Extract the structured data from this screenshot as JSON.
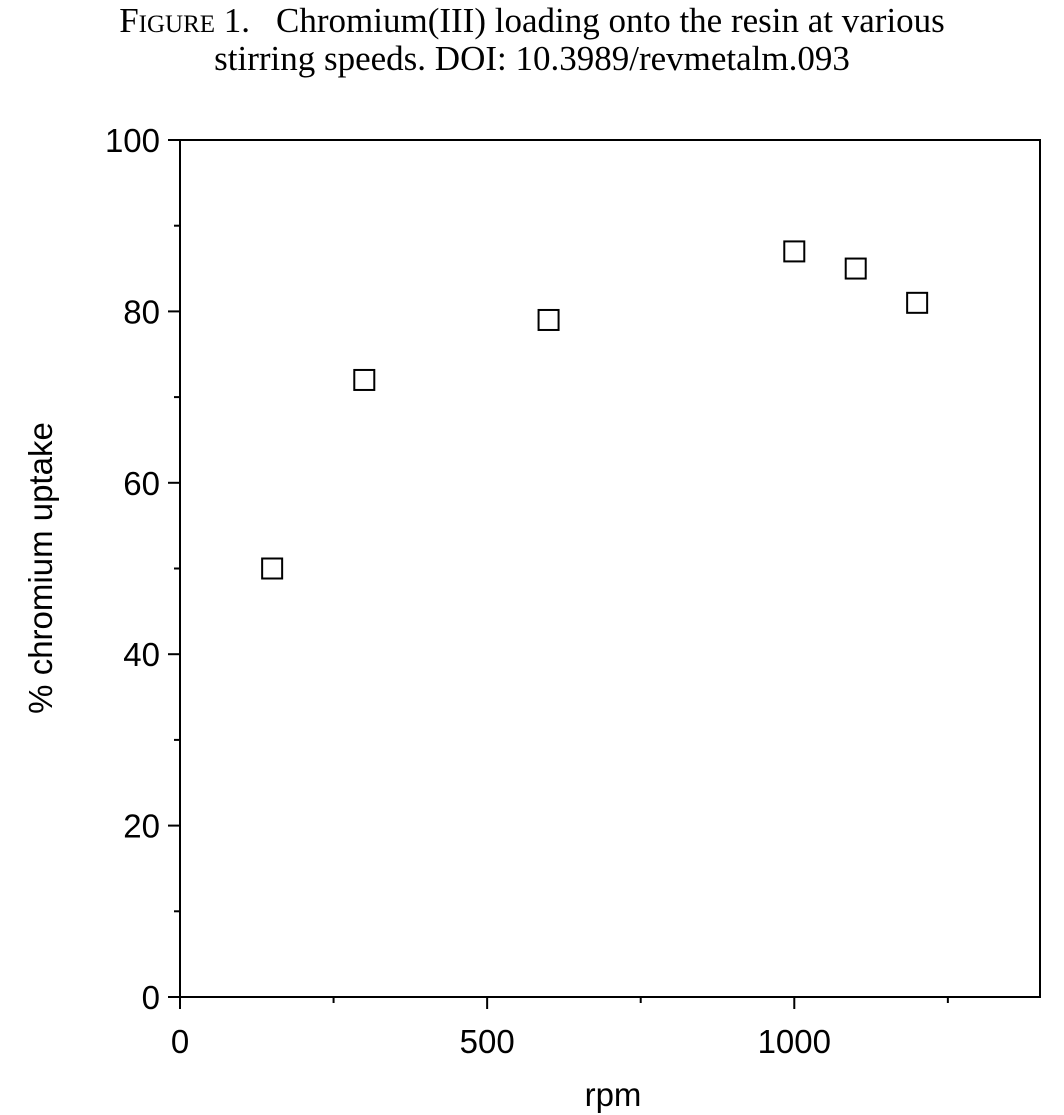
{
  "caption": {
    "label": "Figure 1.",
    "line1": "Chromium(III) loading onto the resin at various",
    "line2": "stirring speeds. DOI: 10.3989/revmetalm.093"
  },
  "chart_data": {
    "type": "scatter",
    "title": "",
    "xlabel": "rpm",
    "ylabel": "% chromium uptake",
    "xlim": [
      0,
      1400
    ],
    "ylim": [
      0,
      100
    ],
    "x_ticks": [
      0,
      500,
      1000
    ],
    "x_minor_ticks": [
      250,
      750,
      1250
    ],
    "y_ticks": [
      0,
      20,
      40,
      60,
      80,
      100
    ],
    "y_minor_ticks": [
      10,
      30,
      50,
      70,
      90
    ],
    "x_tick_labels": [
      "0",
      "500",
      "1000"
    ],
    "y_tick_labels": [
      "0",
      "20",
      "40",
      "60",
      "80",
      "100"
    ],
    "grid": false,
    "legend": "none",
    "marker": "open-square",
    "series": [
      {
        "x": [
          150,
          300,
          600,
          1000,
          1100,
          1200
        ],
        "y": [
          50,
          72,
          79,
          87,
          85,
          81
        ]
      }
    ]
  }
}
